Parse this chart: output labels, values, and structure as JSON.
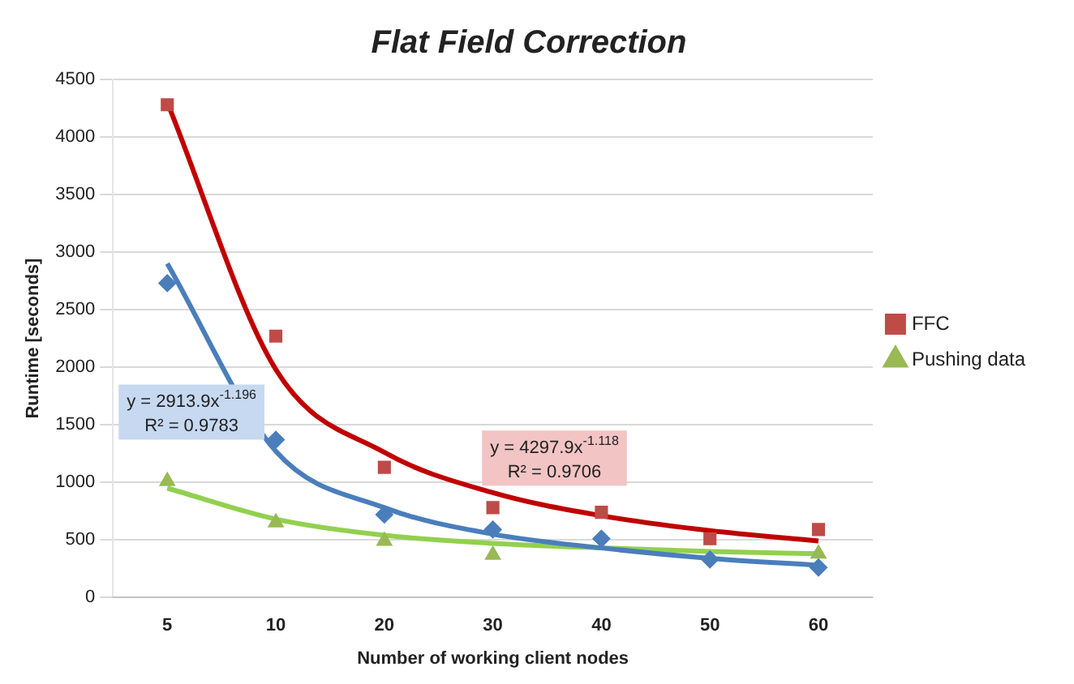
{
  "chart_data": {
    "type": "line",
    "title": "Flat Field Correction",
    "xlabel": "Number of working client nodes",
    "ylabel": "Runtime [seconds]",
    "categories": [
      "5",
      "10",
      "20",
      "30",
      "40",
      "50",
      "60"
    ],
    "ylim": [
      0,
      4500
    ],
    "yticks": [
      0,
      500,
      1000,
      1500,
      2000,
      2500,
      3000,
      3500,
      4000,
      4500
    ],
    "grid": "y",
    "legend": "right",
    "series": [
      {
        "type": "scatter",
        "marker": "diamond",
        "color": "#4a7ebb",
        "values": [
          2730,
          1370,
          720,
          590,
          510,
          330,
          260
        ]
      },
      {
        "type": "scatter",
        "marker": "square",
        "name": "FFC",
        "color": "#be4b48",
        "values": [
          4280,
          2270,
          1130,
          780,
          740,
          510,
          590
        ]
      },
      {
        "type": "scatter",
        "marker": "triangle",
        "name": "Pushing data",
        "color": "#98b954",
        "values": [
          1010,
          650,
          490,
          370,
          null,
          null,
          380
        ]
      },
      {
        "color": "#4a7ebb",
        "values": [
          2900,
          1270,
          780,
          550,
          430,
          340,
          280
        ]
      },
      {
        "color": "#c00000",
        "values": [
          4300,
          1980,
          1260,
          910,
          710,
          580,
          490
        ]
      },
      {
        "color": "#92d050",
        "values": [
          950,
          680,
          540,
          470,
          430,
          400,
          380
        ]
      }
    ],
    "annotations": [
      "y = 2913.9x$^{-1.196}$",
      "R² = 0.9783",
      "y = 4297.9x$^{-1.118}$",
      "R² = 0.9706"
    ]
  }
}
